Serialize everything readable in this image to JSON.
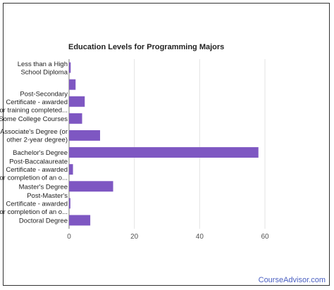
{
  "chart_data": {
    "type": "bar",
    "orientation": "horizontal",
    "title": "Education Levels for Programming Majors",
    "xlabel": "",
    "ylabel": "",
    "xlim": [
      0,
      60
    ],
    "x_ticks": [
      0,
      20,
      40,
      60
    ],
    "grid": true,
    "bar_color": "#7e57c2",
    "categories": [
      [
        "Less than a High",
        "School Diploma"
      ],
      [],
      [
        "Post-Secondary",
        "Certificate - awarded",
        "for training completed..."
      ],
      [
        "Some College Courses"
      ],
      [
        "Associate's Degree (or",
        "other 2-year degree)"
      ],
      [
        "Bachelor's Degree"
      ],
      [
        "Post-Baccalaureate",
        "Certificate - awarded",
        "for completion of an o..."
      ],
      [
        "Master's Degree"
      ],
      [
        "Post-Master's",
        "Certificate - awarded",
        "for completion of an o..."
      ],
      [
        "Doctoral Degree"
      ]
    ],
    "values": [
      0.5,
      2,
      4.8,
      4,
      9.5,
      58,
      1.2,
      13.5,
      0.4,
      6.5
    ]
  },
  "watermark": "CourseAdvisor.com"
}
